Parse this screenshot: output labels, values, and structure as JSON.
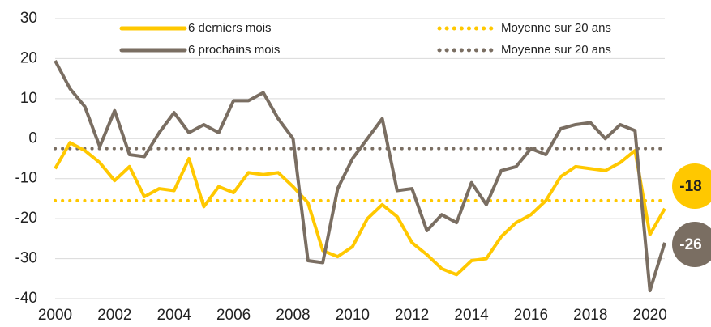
{
  "chart_data": {
    "type": "line",
    "x": [
      2000,
      2000.5,
      2001,
      2001.5,
      2002,
      2002.5,
      2003,
      2003.5,
      2004,
      2004.5,
      2005,
      2005.5,
      2006,
      2006.5,
      2007,
      2007.5,
      2008,
      2008.5,
      2009,
      2009.5,
      2010,
      2010.5,
      2011,
      2011.5,
      2012,
      2012.5,
      2013,
      2013.5,
      2014,
      2014.5,
      2015,
      2015.5,
      2016,
      2016.5,
      2017,
      2017.5,
      2018,
      2018.5,
      2019,
      2019.5,
      2020,
      2020.5
    ],
    "series": [
      {
        "name": "6 derniers mois",
        "color": "#ffc800",
        "values": [
          -7.5,
          -1,
          -3,
          -6,
          -10.5,
          -7,
          -14.5,
          -12.5,
          -13,
          -5,
          -17,
          -12,
          -13.5,
          -8.5,
          -9,
          -8.5,
          -12,
          -16,
          -28,
          -29.5,
          -27,
          -20,
          -16.5,
          -19.5,
          -26,
          -29,
          -32.5,
          -34,
          -30.5,
          -30,
          -24.5,
          -21,
          -19,
          -15.5,
          -9.5,
          -7,
          -7.5,
          -8,
          -6,
          -3,
          -24,
          -17.5
        ]
      },
      {
        "name": "6 prochains mois",
        "color": "#7a6e62",
        "values": [
          19.5,
          12.5,
          8,
          -2,
          7,
          -4,
          -4.5,
          1.5,
          6.5,
          1.5,
          3.5,
          1.5,
          9.5,
          9.5,
          11.5,
          5,
          0,
          -30.5,
          -31,
          -12.5,
          -5,
          0,
          5,
          -13,
          -12.5,
          -23,
          -19,
          -21,
          -11,
          -16.5,
          -8,
          -7,
          -2.5,
          -4,
          2.5,
          3.5,
          4,
          0,
          3.5,
          2,
          -38,
          -26
        ]
      }
    ],
    "reference_lines": [
      {
        "name": "Moyenne sur 20 ans",
        "color": "#ffc800",
        "value": -15.5
      },
      {
        "name": "Moyenne sur 20 ans",
        "color": "#7a6e62",
        "value": -2.5
      }
    ],
    "annotations": [
      {
        "text": "-18",
        "color": "#ffc800",
        "value": -18
      },
      {
        "text": "-26",
        "color": "#7a6e62",
        "value": -26
      }
    ],
    "xlim": [
      2000,
      2020.5
    ],
    "xticks": [
      2000,
      2002,
      2004,
      2006,
      2008,
      2010,
      2012,
      2014,
      2016,
      2018,
      2020
    ],
    "ylim": [
      -40,
      30
    ],
    "yticks": [
      -40,
      -30,
      -20,
      -10,
      0,
      10,
      20,
      30
    ],
    "grid": true
  }
}
